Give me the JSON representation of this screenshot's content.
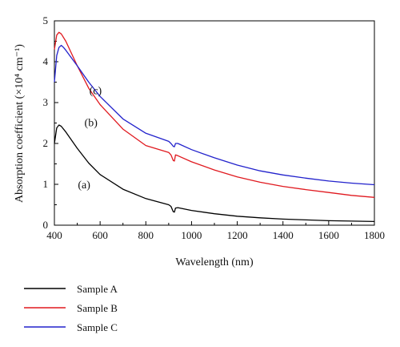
{
  "chart_data": {
    "type": "line",
    "xlabel": "Wavelength (nm)",
    "ylabel": "Absorption coefficient (×10⁴ cm⁻¹)",
    "xlim": [
      400,
      1800
    ],
    "ylim": [
      0,
      5
    ],
    "xticks": [
      400,
      600,
      800,
      1000,
      1200,
      1400,
      1600,
      1800
    ],
    "yticks": [
      0,
      1,
      2,
      3,
      4,
      5
    ],
    "grid": false,
    "legend_position": "bottom-left",
    "series": [
      {
        "name": "Sample A",
        "annotation": "(a)",
        "color": "#000000",
        "x": [
          400,
          410,
          420,
          430,
          450,
          500,
          550,
          600,
          700,
          800,
          900,
          910,
          920,
          925,
          930,
          940,
          1000,
          1100,
          1200,
          1300,
          1400,
          1500,
          1600,
          1700,
          1800
        ],
        "y": [
          2.0,
          2.38,
          2.45,
          2.42,
          2.28,
          1.88,
          1.52,
          1.24,
          0.88,
          0.65,
          0.5,
          0.46,
          0.33,
          0.32,
          0.42,
          0.43,
          0.36,
          0.28,
          0.22,
          0.18,
          0.15,
          0.13,
          0.11,
          0.1,
          0.09
        ]
      },
      {
        "name": "Sample B",
        "annotation": "(b)",
        "color": "#e0191f",
        "x": [
          400,
          410,
          420,
          430,
          450,
          500,
          550,
          600,
          700,
          800,
          900,
          910,
          920,
          925,
          930,
          940,
          1000,
          1100,
          1200,
          1300,
          1400,
          1500,
          1600,
          1700,
          1800
        ],
        "y": [
          4.3,
          4.65,
          4.72,
          4.68,
          4.5,
          3.9,
          3.35,
          2.95,
          2.35,
          1.95,
          1.78,
          1.72,
          1.58,
          1.57,
          1.72,
          1.7,
          1.55,
          1.35,
          1.18,
          1.05,
          0.95,
          0.87,
          0.8,
          0.73,
          0.68
        ]
      },
      {
        "name": "Sample C",
        "annotation": "(c)",
        "color": "#2222cc",
        "x": [
          400,
          410,
          420,
          430,
          440,
          450,
          500,
          550,
          600,
          700,
          800,
          900,
          910,
          920,
          925,
          930,
          940,
          1000,
          1100,
          1200,
          1300,
          1400,
          1500,
          1600,
          1700,
          1800
        ],
        "y": [
          3.5,
          4.15,
          4.35,
          4.4,
          4.35,
          4.28,
          3.9,
          3.5,
          3.15,
          2.6,
          2.25,
          2.05,
          2.0,
          1.93,
          1.92,
          2.0,
          2.0,
          1.85,
          1.65,
          1.47,
          1.33,
          1.23,
          1.15,
          1.08,
          1.03,
          0.99
        ]
      }
    ]
  }
}
